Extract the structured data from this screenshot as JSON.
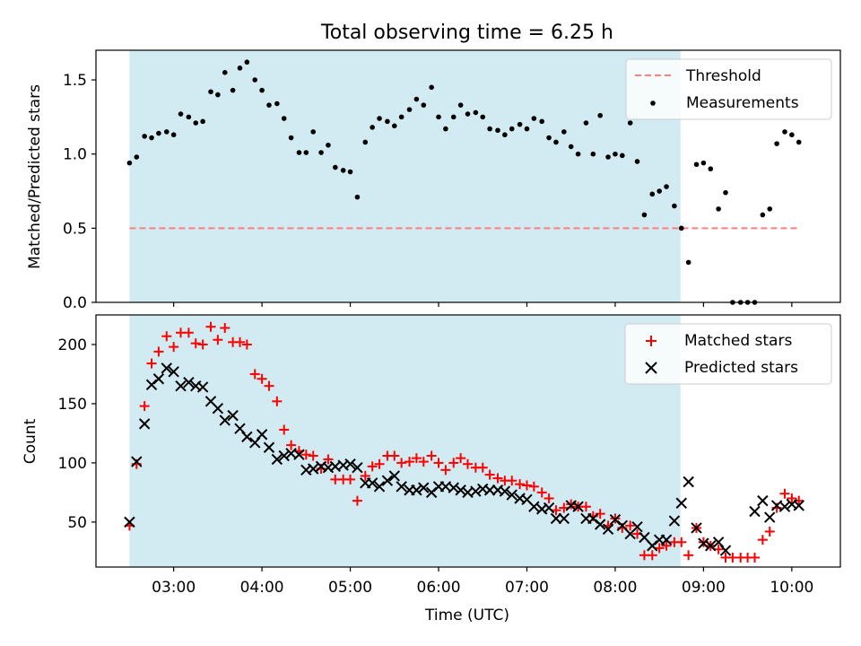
{
  "chart_data": [
    {
      "type": "scatter",
      "title": "Total observing time = 6.25 h",
      "ylabel": "Matched/Predicted stars",
      "xlim": [
        2.12,
        10.55
      ],
      "ylim": [
        0,
        1.7
      ],
      "yticks": [
        0.0,
        0.5,
        1.0,
        1.5
      ],
      "ytick_labels": [
        "0.0",
        "0.5",
        "1.0",
        "1.5"
      ],
      "xticks": [
        3,
        4,
        5,
        6,
        7,
        8,
        9,
        10
      ],
      "shaded_span": [
        2.5,
        8.74
      ],
      "shade_color": "#add8e6",
      "grid": false,
      "legend_position": "upper right",
      "threshold": {
        "name": "Threshold",
        "value": 0.5,
        "x": [
          2.5,
          10.08
        ],
        "color": "#ff7f7f"
      },
      "series": [
        {
          "name": "Measurements",
          "marker": "dot",
          "color": "#000000",
          "x": [
            2.5,
            2.58,
            2.67,
            2.75,
            2.83,
            2.92,
            3.0,
            3.08,
            3.17,
            3.25,
            3.33,
            3.42,
            3.5,
            3.58,
            3.67,
            3.75,
            3.83,
            3.92,
            4.0,
            4.08,
            4.17,
            4.25,
            4.33,
            4.42,
            4.5,
            4.58,
            4.67,
            4.75,
            4.83,
            4.92,
            5.0,
            5.08,
            5.17,
            5.25,
            5.33,
            5.42,
            5.5,
            5.58,
            5.67,
            5.75,
            5.83,
            5.92,
            6.0,
            6.08,
            6.17,
            6.25,
            6.33,
            6.42,
            6.5,
            6.58,
            6.67,
            6.75,
            6.83,
            6.92,
            7.0,
            7.08,
            7.17,
            7.25,
            7.33,
            7.42,
            7.5,
            7.58,
            7.67,
            7.75,
            7.83,
            7.92,
            8.0,
            8.08,
            8.17,
            8.25,
            8.33,
            8.42,
            8.5,
            8.58,
            8.67,
            8.75,
            8.83,
            8.92,
            9.0,
            9.08,
            9.17,
            9.25,
            9.33,
            9.42,
            9.5,
            9.58,
            9.67,
            9.75,
            9.83,
            9.92,
            10.0,
            10.08
          ],
          "y": [
            0.94,
            0.98,
            1.12,
            1.11,
            1.14,
            1.15,
            1.13,
            1.27,
            1.25,
            1.21,
            1.22,
            1.42,
            1.4,
            1.55,
            1.43,
            1.58,
            1.62,
            1.5,
            1.43,
            1.33,
            1.34,
            1.24,
            1.11,
            1.01,
            1.01,
            1.15,
            1.01,
            1.06,
            0.91,
            0.89,
            0.88,
            0.71,
            1.08,
            1.18,
            1.24,
            1.22,
            1.19,
            1.25,
            1.3,
            1.37,
            1.33,
            1.45,
            1.25,
            1.17,
            1.25,
            1.33,
            1.27,
            1.28,
            1.25,
            1.17,
            1.16,
            1.13,
            1.17,
            1.2,
            1.17,
            1.24,
            1.22,
            1.11,
            1.08,
            1.15,
            1.05,
            1.0,
            1.21,
            1.0,
            1.26,
            0.98,
            1.0,
            0.99,
            1.21,
            0.95,
            0.59,
            0.73,
            0.75,
            0.78,
            0.65,
            0.5,
            0.27,
            0.93,
            0.94,
            0.9,
            0.63,
            0.74,
            0.0,
            0.0,
            0.0,
            0.0,
            0.59,
            0.63,
            1.07,
            1.15,
            1.13,
            1.08
          ]
        }
      ]
    },
    {
      "type": "scatter",
      "xlabel": "Time (UTC)",
      "ylabel": "Count",
      "xlim": [
        2.12,
        10.55
      ],
      "ylim": [
        12,
        225
      ],
      "yticks": [
        50,
        100,
        150,
        200
      ],
      "ytick_labels": [
        "50",
        "100",
        "150",
        "200"
      ],
      "xticks": [
        3,
        4,
        5,
        6,
        7,
        8,
        9,
        10
      ],
      "xtick_labels": [
        "03:00",
        "04:00",
        "05:00",
        "06:00",
        "07:00",
        "08:00",
        "09:00",
        "10:00"
      ],
      "shaded_span": [
        2.5,
        8.74
      ],
      "shade_color": "#add8e6",
      "grid": false,
      "legend_position": "upper right",
      "series": [
        {
          "name": "Matched stars",
          "marker": "plus",
          "color": "#ff0000",
          "x": [
            2.5,
            2.58,
            2.67,
            2.75,
            2.83,
            2.92,
            3.0,
            3.08,
            3.17,
            3.25,
            3.33,
            3.42,
            3.5,
            3.58,
            3.67,
            3.75,
            3.83,
            3.92,
            4.0,
            4.08,
            4.17,
            4.25,
            4.33,
            4.42,
            4.5,
            4.58,
            4.67,
            4.75,
            4.83,
            4.92,
            5.0,
            5.08,
            5.17,
            5.25,
            5.33,
            5.42,
            5.5,
            5.58,
            5.67,
            5.75,
            5.83,
            5.92,
            6.0,
            6.08,
            6.17,
            6.25,
            6.33,
            6.42,
            6.5,
            6.58,
            6.67,
            6.75,
            6.83,
            6.92,
            7.0,
            7.08,
            7.17,
            7.25,
            7.33,
            7.42,
            7.5,
            7.58,
            7.67,
            7.75,
            7.83,
            7.92,
            8.0,
            8.08,
            8.17,
            8.25,
            8.33,
            8.42,
            8.5,
            8.58,
            8.67,
            8.75,
            8.83,
            8.92,
            9.0,
            9.08,
            9.17,
            9.25,
            9.33,
            9.42,
            9.5,
            9.58,
            9.67,
            9.75,
            9.83,
            9.92,
            10.0,
            10.08
          ],
          "y": [
            47,
            99,
            148,
            184,
            194,
            207,
            198,
            210,
            210,
            201,
            200,
            215,
            204,
            214,
            202,
            202,
            200,
            175,
            171,
            165,
            152,
            128,
            115,
            110,
            107,
            106,
            95,
            103,
            86,
            86,
            86,
            68,
            89,
            97,
            99,
            106,
            106,
            100,
            101,
            104,
            101,
            106,
            100,
            94,
            100,
            104,
            99,
            96,
            96,
            90,
            87,
            85,
            85,
            82,
            81,
            80,
            75,
            70,
            60,
            62,
            65,
            63,
            63,
            55,
            57,
            47,
            53,
            45,
            47,
            40,
            22,
            22,
            28,
            30,
            33,
            33,
            22,
            45,
            33,
            30,
            27,
            20,
            20,
            20,
            20,
            20,
            35,
            42,
            62,
            74,
            70,
            68
          ]
        },
        {
          "name": "Predicted stars",
          "marker": "x",
          "color": "#000000",
          "x": [
            2.5,
            2.58,
            2.67,
            2.75,
            2.83,
            2.92,
            3.0,
            3.08,
            3.17,
            3.25,
            3.33,
            3.42,
            3.5,
            3.58,
            3.67,
            3.75,
            3.83,
            3.92,
            4.0,
            4.08,
            4.17,
            4.25,
            4.33,
            4.42,
            4.5,
            4.58,
            4.67,
            4.75,
            4.83,
            4.92,
            5.0,
            5.08,
            5.17,
            5.25,
            5.33,
            5.42,
            5.5,
            5.58,
            5.67,
            5.75,
            5.83,
            5.92,
            6.0,
            6.08,
            6.17,
            6.25,
            6.33,
            6.42,
            6.5,
            6.58,
            6.67,
            6.75,
            6.83,
            6.92,
            7.0,
            7.08,
            7.17,
            7.25,
            7.33,
            7.42,
            7.5,
            7.58,
            7.67,
            7.75,
            7.83,
            7.92,
            8.0,
            8.08,
            8.17,
            8.25,
            8.33,
            8.42,
            8.5,
            8.58,
            8.67,
            8.75,
            8.83,
            8.92,
            9.0,
            9.08,
            9.17,
            9.25,
            9.58,
            9.67,
            9.75,
            9.83,
            9.92,
            10.0,
            10.08
          ],
          "y": [
            50,
            101,
            133,
            166,
            171,
            180,
            177,
            165,
            168,
            165,
            164,
            152,
            146,
            136,
            140,
            129,
            122,
            117,
            124,
            113,
            103,
            106,
            108,
            107,
            94,
            95,
            97,
            96,
            97,
            98,
            99,
            96,
            83,
            83,
            80,
            85,
            89,
            80,
            77,
            77,
            79,
            75,
            80,
            80,
            79,
            77,
            75,
            76,
            78,
            77,
            77,
            76,
            73,
            70,
            69,
            63,
            61,
            62,
            53,
            53,
            64,
            63,
            53,
            53,
            48,
            44,
            52,
            47,
            40,
            46,
            37,
            30,
            35,
            35,
            51,
            66,
            84,
            45,
            32,
            30,
            33,
            26,
            59,
            68,
            54,
            64,
            63,
            65,
            64
          ]
        }
      ]
    }
  ]
}
